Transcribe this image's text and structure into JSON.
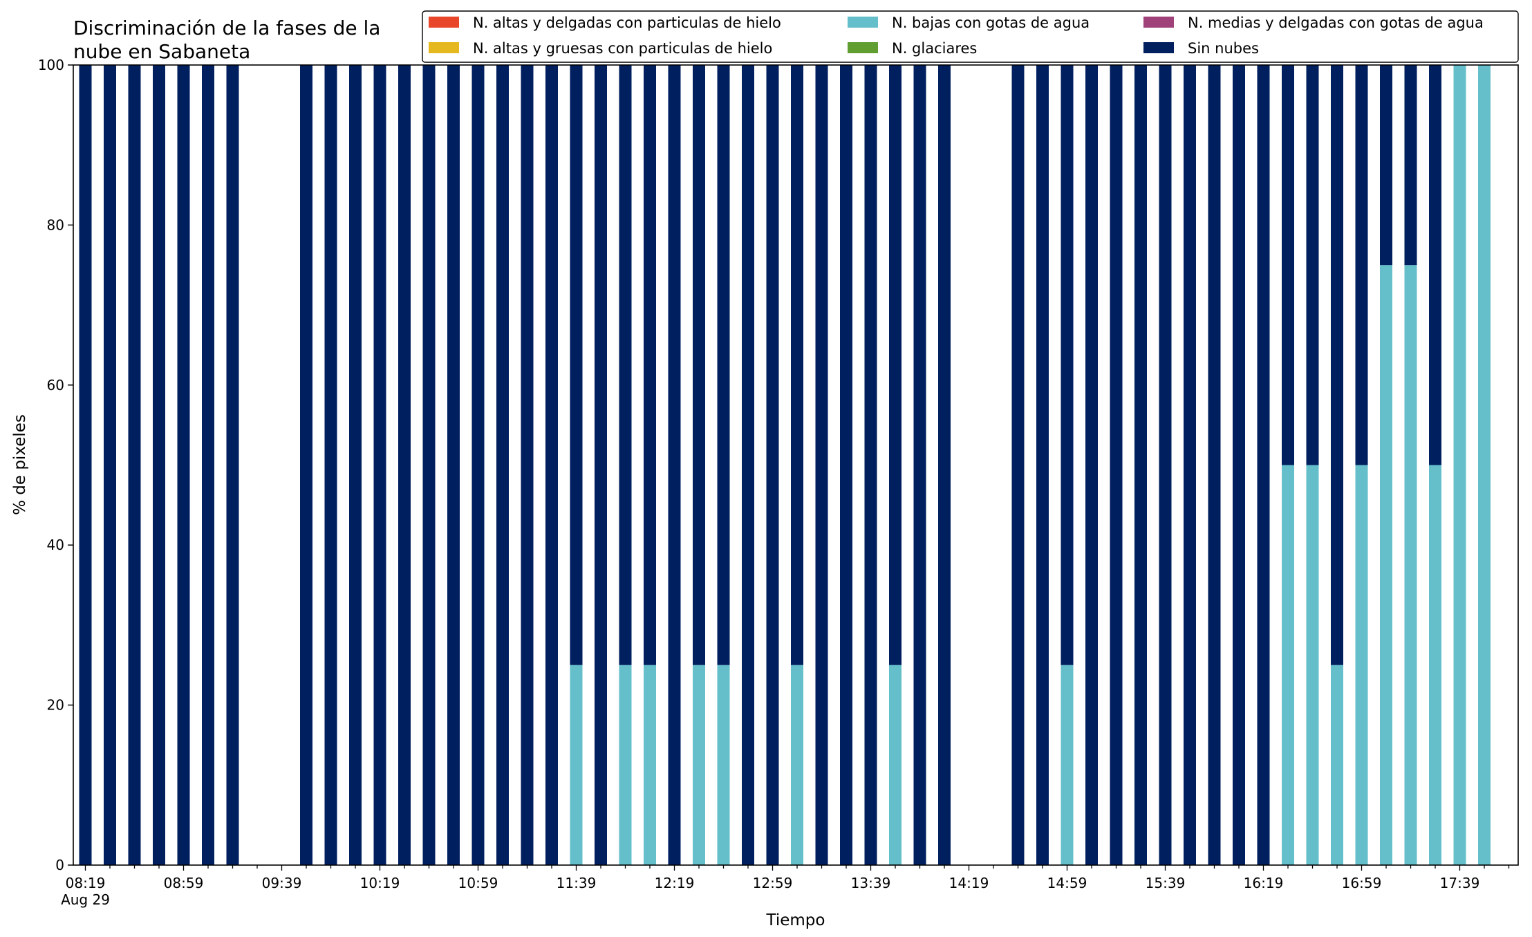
{
  "chart_data": {
    "type": "bar",
    "stacked": true,
    "title_lines": [
      "Discriminación de la fases de la",
      "nube en Sabaneta"
    ],
    "xlabel": "Tiempo",
    "ylabel": "% de pixeles",
    "ylim": [
      0,
      100
    ],
    "yticks": [
      0,
      20,
      40,
      60,
      80,
      100
    ],
    "grid": false,
    "legend_position": "top-right",
    "x_start": "08:19",
    "x_step_minutes": 10,
    "x_count": 58,
    "major_tick_labels": [
      "08:19",
      "08:59",
      "09:39",
      "10:19",
      "10:59",
      "11:39",
      "12:19",
      "12:59",
      "13:39",
      "14:19",
      "14:59",
      "15:39",
      "16:19",
      "16:59",
      "17:39"
    ],
    "date_label": "Aug 29",
    "legend": [
      {
        "name": "N. altas y delgadas con particulas de hielo",
        "color": "#e8472a"
      },
      {
        "name": "N. altas y gruesas con particulas de hielo",
        "color": "#e5b81f"
      },
      {
        "name": "N. bajas con gotas de agua",
        "color": "#64bfca"
      },
      {
        "name": "N. glaciares",
        "color": "#5f9e2f"
      },
      {
        "name": "N. medias y delgadas con gotas de agua",
        "color": "#a0417a"
      },
      {
        "name": "Sin nubes",
        "color": "#001f5f"
      }
    ],
    "series": [
      {
        "name": "N. bajas con gotas de agua",
        "color": "#64bfca",
        "values": [
          0,
          0,
          0,
          0,
          0,
          0,
          0,
          null,
          null,
          0,
          0,
          0,
          0,
          0,
          0,
          0,
          0,
          0,
          0,
          0,
          25,
          0,
          25,
          25,
          0,
          25,
          25,
          0,
          0,
          25,
          0,
          0,
          0,
          25,
          0,
          0,
          null,
          null,
          0,
          0,
          25,
          0,
          0,
          0,
          0,
          0,
          0,
          0,
          0,
          50,
          50,
          25,
          50,
          75,
          75,
          50,
          100,
          100
        ]
      },
      {
        "name": "Sin nubes",
        "color": "#001f5f",
        "values": [
          100,
          100,
          100,
          100,
          100,
          100,
          100,
          null,
          null,
          100,
          100,
          100,
          100,
          100,
          100,
          100,
          100,
          100,
          100,
          100,
          75,
          100,
          75,
          75,
          100,
          75,
          75,
          100,
          100,
          75,
          100,
          100,
          100,
          75,
          100,
          100,
          null,
          null,
          100,
          100,
          75,
          100,
          100,
          100,
          100,
          100,
          100,
          100,
          100,
          50,
          50,
          75,
          50,
          25,
          25,
          50,
          0,
          0
        ]
      }
    ]
  }
}
